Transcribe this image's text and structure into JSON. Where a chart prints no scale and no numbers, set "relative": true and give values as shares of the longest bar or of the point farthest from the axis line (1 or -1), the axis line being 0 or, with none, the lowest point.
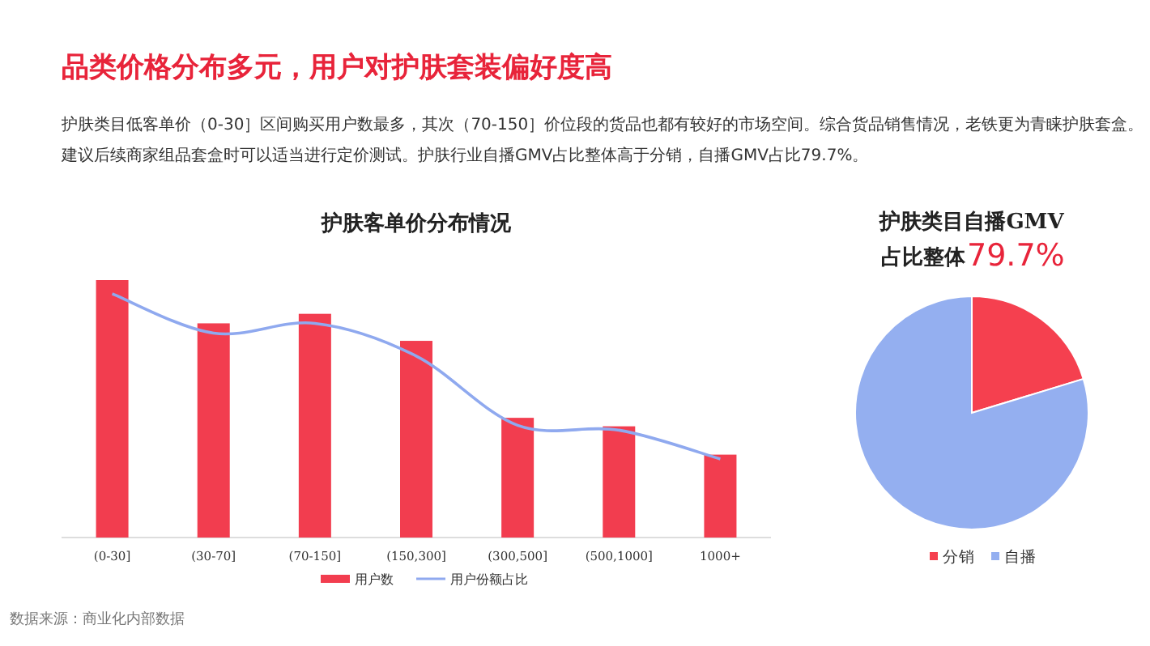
{
  "chart_data": [
    {
      "type": "other",
      "title": "品类价格分布多元，用户对护肤套装偏好度高",
      "subtitle": "护肤类目低客单价（0-30］区间购买用户数最多，其次（70-150］价位段的货品也都有较好的市场空间。综合货品销售情况，老铁更为青睐护肤套盒。建议后续商家组品套盒时可以适当进行定价测试。护肤行业自播GMV占比整体高于分销，自播GMV占比79.7%。",
      "annotations": [
        "数据来源：商业化内部数据"
      ]
    },
    {
      "type": "bar",
      "title": "护肤客单价分布情况",
      "relative": true,
      "legend": "bottom",
      "categories": [
        "(0-30]",
        "(30-70]",
        "(70-150]",
        "(150,300]",
        "(300,500]",
        "(500,1000]",
        "1000+"
      ],
      "series": [
        {
          "name": "用户数",
          "color": "#f23d4f",
          "values": [
            1,
            0.832,
            0.869,
            0.764,
            0.465,
            0.432,
            0.322
          ]
        },
        {
          "name": "用户份额占比",
          "type": "line",
          "color": "#8fa9ef",
          "values": [
            0.947,
            0.794,
            0.832,
            0.705,
            0.436,
            0.417,
            0.305
          ]
        }
      ]
    },
    {
      "type": "pie",
      "title": "护肤类目自播GMV",
      "subtitle": "占比整体",
      "annotations": [
        "79.7%"
      ],
      "legend": "bottom",
      "categories": [
        "分销",
        "自播"
      ],
      "values": [
        20.3,
        79.7
      ],
      "colors": [
        "#f5404f",
        "#94aff0"
      ]
    }
  ]
}
